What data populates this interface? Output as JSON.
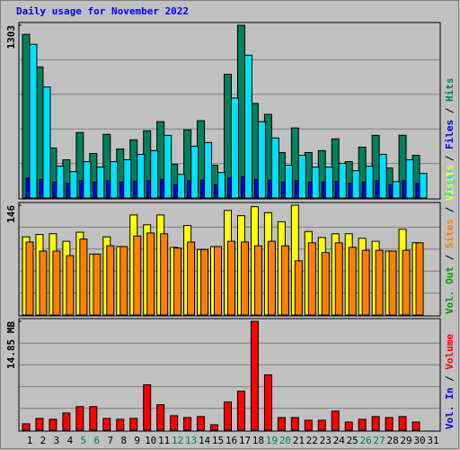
{
  "chart_data": [
    {
      "type": "bar",
      "title": "Daily usage for November 2022",
      "ylim": [
        0,
        1303
      ],
      "yticks": [
        1303
      ],
      "grid": true,
      "legend_separator": " / ",
      "series": [
        {
          "name": "Hits",
          "color": "#00805c",
          "values": [
            1234,
            988,
            377,
            288,
            494,
            336,
            480,
            370,
            439,
            507,
            576,
            254,
            514,
            583,
            247,
            933,
            1303,
            713,
            631,
            343,
            528,
            343,
            357,
            446,
            274,
            384,
            473,
            226,
            473,
            322,
            null
          ]
        },
        {
          "name": "Files",
          "color": "#0000ff",
          "values": [
            150,
            140,
            120,
            110,
            130,
            120,
            130,
            120,
            125,
            130,
            140,
            100,
            130,
            135,
            100,
            150,
            160,
            140,
            135,
            120,
            130,
            120,
            120,
            125,
            110,
            120,
            130,
            100,
            130,
            110,
            null
          ]
        },
        {
          "name": "Pages",
          "color": "#00e0ff",
          "values": [
            1159,
            837,
            240,
            199,
            274,
            233,
            274,
            288,
            329,
            357,
            473,
            178,
            391,
            418,
            192,
            754,
            1077,
            576,
            453,
            247,
            322,
            233,
            233,
            261,
            206,
            240,
            329,
            123,
            288,
            185,
            null
          ]
        }
      ]
    },
    {
      "type": "bar",
      "ylim": [
        0,
        146
      ],
      "yticks": [
        146
      ],
      "grid": true,
      "legend_separator": " / ",
      "series": [
        {
          "name": "Visits",
          "color": "#ffff00",
          "values": [
            104,
            107,
            108,
            98,
            110,
            81,
            104,
            91,
            133,
            120,
            133,
            90,
            119,
            87,
            91,
            139,
            132,
            144,
            136,
            124,
            146,
            111,
            103,
            108,
            108,
            102,
            98,
            85,
            114,
            96,
            null
          ]
        },
        {
          "name": "Sites",
          "color": "#ff8000",
          "values": [
            97,
            85,
            85,
            79,
            101,
            81,
            92,
            91,
            105,
            109,
            108,
            89,
            97,
            87,
            91,
            98,
            97,
            92,
            98,
            92,
            72,
            96,
            83,
            96,
            90,
            86,
            86,
            85,
            86,
            96,
            null
          ]
        },
        {
          "name": "Vol. Out",
          "color": "#00a000",
          "values": [
            null,
            null,
            null,
            null,
            null,
            null,
            null,
            null,
            null,
            null,
            null,
            null,
            null,
            null,
            null,
            null,
            null,
            null,
            null,
            null,
            null,
            null,
            null,
            null,
            null,
            null,
            null,
            null,
            null,
            null,
            null
          ]
        }
      ]
    },
    {
      "type": "bar",
      "ylim": [
        0,
        14.85
      ],
      "yticks": [
        {
          "value": 14.85,
          "label": "14.85 MB"
        }
      ],
      "grid": true,
      "legend_separator": " / ",
      "categories": [
        "1",
        "2",
        "3",
        "4",
        "5",
        "6",
        "7",
        "8",
        "9",
        "10",
        "11",
        "12",
        "13",
        "14",
        "15",
        "16",
        "17",
        "18",
        "19",
        "20",
        "21",
        "22",
        "23",
        "24",
        "25",
        "26",
        "27",
        "28",
        "29",
        "30",
        "31"
      ],
      "category_colors": [
        "#000000",
        "#000000",
        "#000000",
        "#000000",
        "#008060",
        "#008060",
        "#000000",
        "#000000",
        "#000000",
        "#000000",
        "#000000",
        "#008060",
        "#008060",
        "#000000",
        "#000000",
        "#000000",
        "#000000",
        "#000000",
        "#008060",
        "#008060",
        "#000000",
        "#000000",
        "#000000",
        "#000000",
        "#000000",
        "#008060",
        "#008060",
        "#000000",
        "#000000",
        "#000000",
        "#000000"
      ],
      "series": [
        {
          "name": "Volume",
          "color": "#ff0000",
          "values": [
            0.87,
            1.61,
            1.49,
            2.35,
            3.22,
            3.22,
            1.61,
            1.49,
            1.61,
            6.19,
            3.47,
            1.98,
            1.73,
            1.86,
            0.74,
            3.84,
            5.32,
            14.85,
            7.55,
            1.73,
            1.73,
            1.36,
            1.36,
            2.6,
            1.11,
            1.49,
            1.86,
            1.73,
            1.86,
            1.11,
            null
          ]
        },
        {
          "name": "Vol. In",
          "color": "#0000ff",
          "values": [
            null,
            null,
            null,
            null,
            null,
            null,
            null,
            null,
            null,
            null,
            null,
            null,
            null,
            null,
            null,
            null,
            null,
            null,
            null,
            null,
            null,
            null,
            null,
            null,
            null,
            null,
            null,
            null,
            null,
            null,
            null
          ]
        }
      ]
    }
  ]
}
